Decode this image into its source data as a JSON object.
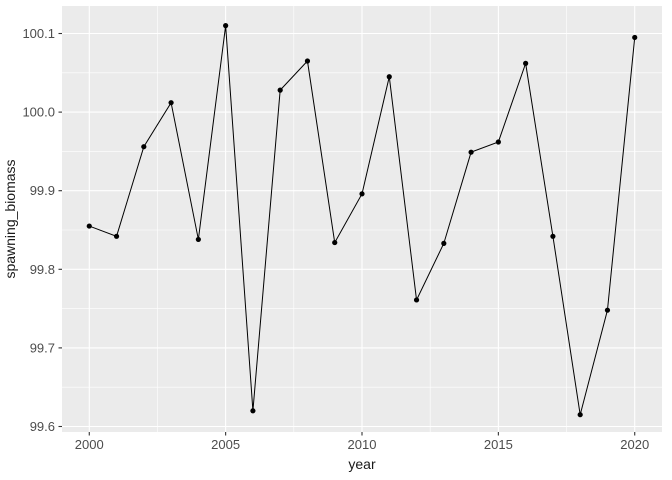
{
  "figure": {
    "background": "#FFFFFF",
    "panel_bg": "#EBEBEB",
    "grid_color": "#FFFFFF",
    "line_color": "#000000",
    "point_color": "#000000",
    "tick_label_color": "#4D4D4D",
    "axis_title_color": "#1A1A1A",
    "tick_mark_color": "#333333"
  },
  "chart_data": {
    "type": "line",
    "title": "",
    "xlabel": "year",
    "ylabel": "spawning_biomass",
    "series": [
      {
        "name": "spawning_biomass",
        "x": [
          2000,
          2001,
          2002,
          2003,
          2004,
          2005,
          2006,
          2007,
          2008,
          2009,
          2010,
          2011,
          2012,
          2013,
          2014,
          2015,
          2016,
          2017,
          2018,
          2019,
          2020
        ],
        "values": [
          99.855,
          99.842,
          99.956,
          100.012,
          99.838,
          100.11,
          99.62,
          100.028,
          100.065,
          99.834,
          99.896,
          100.045,
          99.761,
          99.833,
          99.949,
          99.962,
          100.062,
          99.842,
          99.615,
          99.748,
          100.095
        ]
      }
    ],
    "xlim": [
      1999,
      2021
    ],
    "ylim": [
      99.593,
      100.135
    ],
    "x_ticks": [
      {
        "value": 2000,
        "label": "2000"
      },
      {
        "value": 2005,
        "label": "2005"
      },
      {
        "value": 2010,
        "label": "2010"
      },
      {
        "value": 2015,
        "label": "2015"
      },
      {
        "value": 2020,
        "label": "2020"
      }
    ],
    "y_ticks": [
      {
        "value": 99.6,
        "label": "99.6"
      },
      {
        "value": 99.7,
        "label": "99.7"
      },
      {
        "value": 99.8,
        "label": "99.8"
      },
      {
        "value": 99.9,
        "label": "99.9"
      },
      {
        "value": 100.0,
        "label": "100.0"
      },
      {
        "value": 100.1,
        "label": "100.1"
      }
    ],
    "x_minor": [
      2002.5,
      2007.5,
      2012.5,
      2017.5
    ],
    "y_minor": [
      99.65,
      99.75,
      99.85,
      99.95,
      100.05
    ],
    "grid": "on",
    "legend": "none",
    "marker": "circle"
  }
}
